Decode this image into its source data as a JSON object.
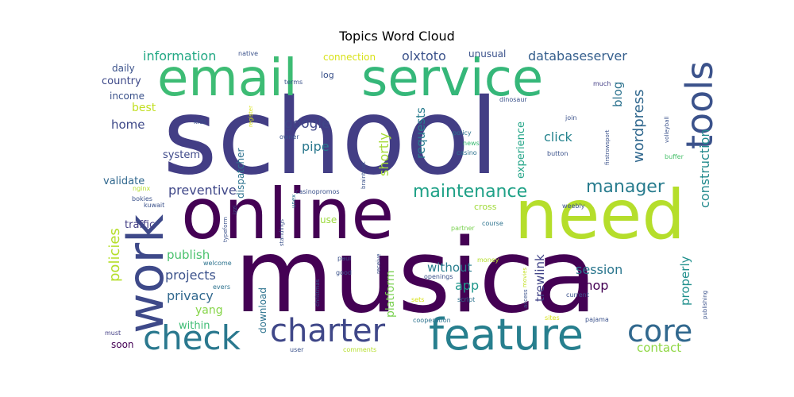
{
  "chart_data": {
    "type": "wordcloud",
    "title": "Topics Word Cloud",
    "words": [
      {
        "text": "school",
        "weight": 100,
        "color": "#433e85"
      },
      {
        "text": "musica",
        "weight": 92,
        "color": "#440154"
      },
      {
        "text": "online",
        "weight": 70,
        "color": "#440154"
      },
      {
        "text": "need",
        "weight": 68,
        "color": "#b5de2b"
      },
      {
        "text": "email",
        "weight": 55,
        "color": "#3dbc74"
      },
      {
        "text": "service",
        "weight": 55,
        "color": "#35b779"
      },
      {
        "text": "work",
        "weight": 55,
        "color": "#3e4989"
      },
      {
        "text": "feature",
        "weight": 45,
        "color": "#277f8e"
      },
      {
        "text": "tools",
        "weight": 40,
        "color": "#3b528b"
      },
      {
        "text": "check",
        "weight": 36,
        "color": "#2a788e"
      },
      {
        "text": "charter",
        "weight": 34,
        "color": "#3f4788"
      },
      {
        "text": "core",
        "weight": 32,
        "color": "#31688e"
      },
      {
        "text": "maintenance",
        "weight": 22,
        "color": "#1fa187"
      },
      {
        "text": "manager",
        "weight": 22,
        "color": "#287c8e"
      },
      {
        "text": "policies",
        "weight": 18,
        "color": "#b5de2b"
      },
      {
        "text": "wordpress",
        "weight": 18,
        "color": "#31688e"
      },
      {
        "text": "information",
        "weight": 16,
        "color": "#22a884"
      },
      {
        "text": "databaseserver",
        "weight": 16,
        "color": "#355f8d"
      },
      {
        "text": "olxtoto",
        "weight": 16,
        "color": "#3b528b"
      },
      {
        "text": "construction",
        "weight": 16,
        "color": "#238a8d"
      },
      {
        "text": "google",
        "weight": 16,
        "color": "#3f4788"
      },
      {
        "text": "pipe",
        "weight": 16,
        "color": "#2a788e"
      },
      {
        "text": "shortly",
        "weight": 16,
        "color": "#a5db36"
      },
      {
        "text": "requests",
        "weight": 14,
        "color": "#287c8e"
      },
      {
        "text": "preventive",
        "weight": 16,
        "color": "#3f4788"
      },
      {
        "text": "blog",
        "weight": 16,
        "color": "#2c728e"
      },
      {
        "text": "click",
        "weight": 16,
        "color": "#25838e"
      },
      {
        "text": "experience",
        "weight": 13,
        "color": "#20a486"
      },
      {
        "text": "session",
        "weight": 16,
        "color": "#2a768e"
      },
      {
        "text": "shop",
        "weight": 16,
        "color": "#440154"
      },
      {
        "text": "app",
        "weight": 16,
        "color": "#1f988b"
      },
      {
        "text": "without",
        "weight": 15,
        "color": "#287d8e"
      },
      {
        "text": "trewlink",
        "weight": 15,
        "color": "#404387"
      },
      {
        "text": "properly",
        "weight": 15,
        "color": "#21908d"
      },
      {
        "text": "contact",
        "weight": 15,
        "color": "#8fd744"
      },
      {
        "text": "platform",
        "weight": 14,
        "color": "#7ad151"
      },
      {
        "text": "projects",
        "weight": 16,
        "color": "#3b528b"
      },
      {
        "text": "privacy",
        "weight": 16,
        "color": "#31688e"
      },
      {
        "text": "publish",
        "weight": 15,
        "color": "#4ac16d"
      },
      {
        "text": "yang",
        "weight": 14,
        "color": "#86d549"
      },
      {
        "text": "within",
        "weight": 13,
        "color": "#3dbc74"
      },
      {
        "text": "home",
        "weight": 14,
        "color": "#3e4989"
      },
      {
        "text": "best",
        "weight": 14,
        "color": "#c2df23"
      },
      {
        "text": "system",
        "weight": 13,
        "color": "#3e4989"
      },
      {
        "text": "validate",
        "weight": 13,
        "color": "#31688e"
      },
      {
        "text": "traffic",
        "weight": 13,
        "color": "#433e85"
      },
      {
        "text": "country",
        "weight": 13,
        "color": "#3e4989"
      },
      {
        "text": "daily",
        "weight": 12,
        "color": "#3b528b"
      },
      {
        "text": "income",
        "weight": 12,
        "color": "#3b528b"
      },
      {
        "text": "connection",
        "weight": 12,
        "color": "#d8e219"
      },
      {
        "text": "unusual",
        "weight": 12,
        "color": "#3b528b"
      },
      {
        "text": "dispatcher",
        "weight": 12,
        "color": "#2c728e"
      },
      {
        "text": "download",
        "weight": 12,
        "color": "#2c728e"
      },
      {
        "text": "soon",
        "weight": 12,
        "color": "#440154"
      },
      {
        "text": "use",
        "weight": 12,
        "color": "#9bd93c"
      },
      {
        "text": "cross",
        "weight": 11,
        "color": "#a0da39"
      },
      {
        "text": "log",
        "weight": 11,
        "color": "#3b528b"
      },
      {
        "text": "much",
        "weight": 8,
        "color": "#433e85"
      },
      {
        "text": "join",
        "weight": 8,
        "color": "#3b528b"
      },
      {
        "text": "dinosaur",
        "weight": 8,
        "color": "#3b528b"
      },
      {
        "text": "policy",
        "weight": 8,
        "color": "#2c728e"
      },
      {
        "text": "news",
        "weight": 8,
        "color": "#3dbc74"
      },
      {
        "text": "casino",
        "weight": 8,
        "color": "#2c728e"
      },
      {
        "text": "button",
        "weight": 8,
        "color": "#3b528b"
      },
      {
        "text": "firstrowsport",
        "weight": 7,
        "color": "#3b528b"
      },
      {
        "text": "volleyball",
        "weight": 7,
        "color": "#3b528b"
      },
      {
        "text": "buffer",
        "weight": 8,
        "color": "#4ac16d"
      },
      {
        "text": "weebly",
        "weight": 8,
        "color": "#3b528b"
      },
      {
        "text": "course",
        "weight": 8,
        "color": "#2c728e"
      },
      {
        "text": "partner",
        "weight": 8,
        "color": "#7ad151"
      },
      {
        "text": "money",
        "weight": 8,
        "color": "#b5de2b"
      },
      {
        "text": "movies",
        "weight": 7,
        "color": "#c2df23"
      },
      {
        "text": "access",
        "weight": 7,
        "color": "#3b528b"
      },
      {
        "text": "current",
        "weight": 8,
        "color": "#3b528b"
      },
      {
        "text": "publishing",
        "weight": 7,
        "color": "#3b528b"
      },
      {
        "text": "pajama",
        "weight": 8,
        "color": "#3b528b"
      },
      {
        "text": "sites",
        "weight": 8,
        "color": "#d8e219"
      },
      {
        "text": "script",
        "weight": 8,
        "color": "#2c728e"
      },
      {
        "text": "sets",
        "weight": 8,
        "color": "#d8e219"
      },
      {
        "text": "openings",
        "weight": 8,
        "color": "#3b528b"
      },
      {
        "text": "cooperation",
        "weight": 8,
        "color": "#2c728e"
      },
      {
        "text": "comments",
        "weight": 8,
        "color": "#b5de2b"
      },
      {
        "text": "user",
        "weight": 8,
        "color": "#3b528b"
      },
      {
        "text": "must",
        "weight": 8,
        "color": "#433e85"
      },
      {
        "text": "christmas",
        "weight": 7,
        "color": "#3b528b"
      },
      {
        "text": "good",
        "weight": 8,
        "color": "#3b528b"
      },
      {
        "text": "paul",
        "weight": 8,
        "color": "#3b528b"
      },
      {
        "text": "receive",
        "weight": 7,
        "color": "#3b528b"
      },
      {
        "text": "standings",
        "weight": 7,
        "color": "#3b528b"
      },
      {
        "text": "evers",
        "weight": 8,
        "color": "#2c728e"
      },
      {
        "text": "welcome",
        "weight": 8,
        "color": "#2c728e"
      },
      {
        "text": "typeform",
        "weight": 7,
        "color": "#3b528b"
      },
      {
        "text": "kuwait",
        "weight": 8,
        "color": "#3b528b"
      },
      {
        "text": "bokies",
        "weight": 8,
        "color": "#3b528b"
      },
      {
        "text": "nginx",
        "weight": 8,
        "color": "#b5de2b"
      },
      {
        "text": "izzi",
        "weight": 7,
        "color": "#3b528b"
      },
      {
        "text": "unex",
        "weight": 7,
        "color": "#2c728e"
      },
      {
        "text": "casinopromos",
        "weight": 8,
        "color": "#3b528b"
      },
      {
        "text": "braintrust",
        "weight": 7,
        "color": "#3b528b"
      },
      {
        "text": "owner",
        "weight": 8,
        "color": "#3b528b"
      },
      {
        "text": "register",
        "weight": 7,
        "color": "#d8e219"
      },
      {
        "text": "kids",
        "weight": 8,
        "color": "#3b528b"
      },
      {
        "text": "terms",
        "weight": 8,
        "color": "#3b528b"
      },
      {
        "text": "native",
        "weight": 8,
        "color": "#3b528b"
      }
    ]
  }
}
